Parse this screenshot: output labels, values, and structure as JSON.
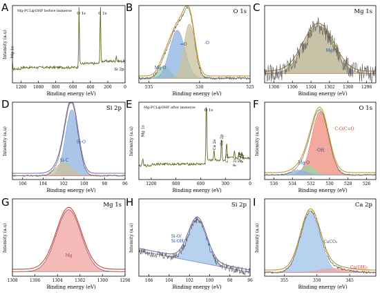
{
  "chart_data": [
    {
      "letter": "A",
      "type": "line",
      "title": "",
      "corner_text": "Mg-PCL@OHF before immerse",
      "xlabel": "Binding energy (eV)",
      "ylabel": "Intensity (a.u)",
      "xlim": [
        1300,
        0
      ],
      "xticks": [
        1200,
        1000,
        800,
        600,
        400,
        200,
        0
      ],
      "peaks": [
        {
          "label": "Mg 1s",
          "x": 1303
        },
        {
          "label": "O 1s",
          "x": 531
        },
        {
          "label": "C 1s",
          "x": 285
        },
        {
          "label": "Si 2p",
          "x": 101
        }
      ],
      "colors": {
        "line": "#5a6b21"
      }
    },
    {
      "letter": "B",
      "type": "line",
      "title": "O 1s",
      "corner_text": "",
      "xlabel": "Binding energy (eV)",
      "ylabel": "",
      "xlim": [
        536,
        525
      ],
      "xticks": [
        535,
        530,
        525
      ],
      "components": [
        {
          "label": "Mg-O",
          "center": 533.5,
          "fill": "#9bd3a7"
        },
        {
          "label": "=O",
          "center": 532.2,
          "fill": "#8fb2e0"
        },
        {
          "label": "-O",
          "center": 531.0,
          "fill": "#c9c09a"
        }
      ],
      "colors": {
        "envelope": "#c79a27"
      }
    },
    {
      "letter": "C",
      "type": "line",
      "title": "Mg 1s",
      "corner_text": "",
      "xlabel": "Binding energy (eV)",
      "ylabel": "",
      "xlim": [
        1309,
        1297
      ],
      "xticks": [
        1308,
        1306,
        1304,
        1302,
        1300,
        1298
      ],
      "components": [
        {
          "label": "Mg",
          "center": 1303.2,
          "fill": "#b7ae88"
        }
      ],
      "colors": {
        "envelope": "#8b7a33"
      }
    },
    {
      "letter": "D",
      "type": "line",
      "title": "Si 2p",
      "corner_text": "",
      "xlabel": "Binding energy (eV)",
      "ylabel": "Intensity (a.u)",
      "xlim": [
        107,
        96
      ],
      "xticks": [
        106,
        104,
        102,
        100,
        98,
        96
      ],
      "components": [
        {
          "label": "Si-O",
          "center": 101.2,
          "fill": "#8fb2e0"
        },
        {
          "label": "Si-C",
          "center": 102.0,
          "fill": "#c9c09a"
        }
      ],
      "colors": {
        "envelope": "#7b6fb0"
      }
    },
    {
      "letter": "E",
      "type": "line",
      "title": "",
      "corner_text": "Mg-PCL@OHF after immerse",
      "xlabel": "Binding energy (eV)",
      "ylabel": "Intensity (a.u)",
      "xlim": [
        1350,
        0
      ],
      "xticks": [
        1200,
        900,
        600,
        300,
        0
      ],
      "peaks": [
        {
          "label": "Mg 1s",
          "x": 1303
        },
        {
          "label": "O 1s",
          "x": 531
        },
        {
          "label": "Ca 2s",
          "x": 438
        },
        {
          "label": "Ca 2p",
          "x": 347
        },
        {
          "label": "C 1s",
          "x": 285
        },
        {
          "label": "P 2s",
          "x": 190
        },
        {
          "label": "Si 2p",
          "x": 133
        },
        {
          "label": "P 2p",
          "x": 101
        }
      ],
      "colors": {
        "line": "#5a6b21"
      }
    },
    {
      "letter": "F",
      "type": "line",
      "title": "O 1s",
      "corner_text": "",
      "xlabel": "Binding energy (eV)",
      "ylabel": "Intensity (a.u)",
      "xlim": [
        537,
        525
      ],
      "xticks": [
        536,
        534,
        532,
        530,
        528,
        526
      ],
      "components": [
        {
          "label": "C-O/C=O",
          "center": 531.0,
          "fill": "#f08c7e"
        },
        {
          "label": "-OH",
          "center": 532.3,
          "fill": "#9bd3a7"
        },
        {
          "label": "Mg-O",
          "center": 533.3,
          "fill": "#8fb2e0"
        }
      ],
      "colors": {
        "envelope": "#c79a27"
      }
    },
    {
      "letter": "G",
      "type": "line",
      "title": "Mg 1s",
      "corner_text": "",
      "xlabel": "Binding energy (eV)",
      "ylabel": "Intensity (a.u)",
      "xlim": [
        1308,
        1298
      ],
      "xticks": [
        1308,
        1306,
        1304,
        1302,
        1300,
        1298
      ],
      "components": [
        {
          "label": "Mg",
          "center": 1303.0,
          "fill": "#f2a3a0"
        }
      ],
      "colors": {
        "envelope": "#e23a3a"
      }
    },
    {
      "letter": "H",
      "type": "line",
      "title": "Si 2p",
      "corner_text": "",
      "xlabel": "Binding energy (eV)",
      "ylabel": "Intensity (a.u)",
      "xlim": [
        107,
        96
      ],
      "xticks": [
        106,
        104,
        102,
        100,
        98,
        96
      ],
      "components": [
        {
          "label": "Si-O/\nSi-OH",
          "center": 101.2,
          "fill": "#9ec3ea"
        }
      ],
      "colors": {
        "envelope": "#7b6fb0"
      }
    },
    {
      "letter": "I",
      "type": "line",
      "title": "Ca 2p",
      "corner_text": "",
      "xlabel": "Binding energy (eV)",
      "ylabel": "Intensity (a.u)",
      "xlim": [
        358,
        341
      ],
      "xticks": [
        355,
        350,
        345
      ],
      "components": [
        {
          "label": "CaCO₃",
          "center": 351.0,
          "fill": "#9ec3ea"
        },
        {
          "label": "Ca(OH)₂",
          "center": 347.5,
          "fill": "#f2a3a0"
        }
      ],
      "colors": {
        "envelope": "#b38f2a"
      }
    }
  ]
}
